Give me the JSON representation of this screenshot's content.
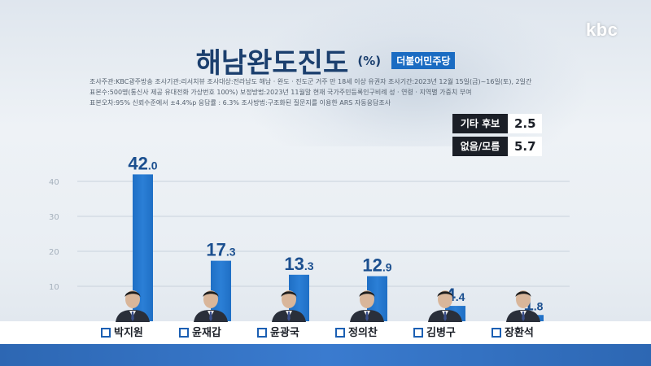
{
  "logo": "kbc",
  "title": "해남완도진도",
  "unit": "(%)",
  "party": "더불어민주당",
  "meta": [
    "조사주관:KBC광주방송   조사기관:리서치뷰   조사대상:전라남도 해남 · 완도 · 진도군 거주 만 18세 이상 유권자  조사기간:2023년 12월 15일(금)~16일(토), 2일간",
    "표본수:500명(통신사 제공 유대전화 가상번호 100%)   보정방법:2023년 11월말 현재 국가주민등록인구비례 성 · 연령 · 지역별 가중치 부여",
    "표본오차:95% 신뢰수준에서 ±4.4%p   응답률 : 6.3%   조사방법:구조화된 질문지를 이용한 ARS 자동응답조사"
  ],
  "extras": [
    {
      "label": "기타 후보",
      "value": "2.5"
    },
    {
      "label": "없음/모름",
      "value": "5.7"
    }
  ],
  "colors": {
    "bar": "#1f6fc5",
    "bar_top": "#2b7fd6",
    "accent": "#1b6cc2",
    "dark": "#1b1f27"
  },
  "chart_data": {
    "type": "bar",
    "categories": [
      "박지원",
      "윤재갑",
      "윤광국",
      "정의찬",
      "김병구",
      "장환석"
    ],
    "values": [
      42.0,
      17.3,
      13.3,
      12.9,
      4.4,
      1.8
    ],
    "value_labels": [
      [
        "42",
        ".0"
      ],
      [
        "17",
        ".3"
      ],
      [
        "13",
        ".3"
      ],
      [
        "12",
        ".9"
      ],
      [
        "4",
        ".4"
      ],
      [
        "1",
        ".8"
      ]
    ],
    "yticks": [
      10,
      20,
      30,
      40
    ],
    "ylim": [
      0,
      45
    ],
    "grid": true
  }
}
